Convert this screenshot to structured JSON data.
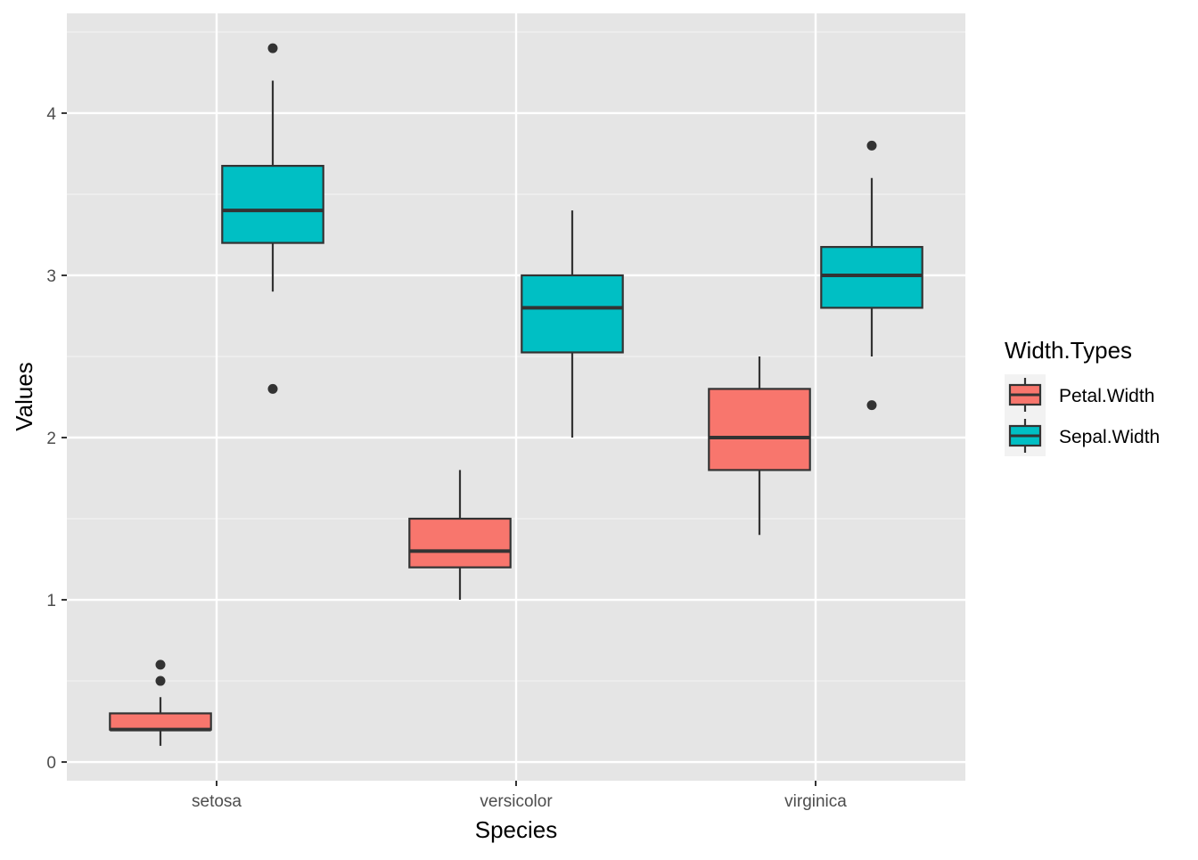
{
  "chart_data": {
    "type": "boxplot",
    "xlabel": "Species",
    "ylabel": "Values",
    "categories": [
      "setosa",
      "versicolor",
      "virginica"
    ],
    "ylim": [
      -0.115,
      4.615
    ],
    "yticks": [
      0,
      1,
      2,
      3,
      4
    ],
    "ytick_labels": [
      "0",
      "1",
      "2",
      "3",
      "4"
    ],
    "grid": true,
    "legend": {
      "title": "Width.Types",
      "placement": "right"
    },
    "series": [
      {
        "name": "Petal.Width",
        "color": "#F8766D",
        "boxes": [
          {
            "category": "setosa",
            "lower": 0.1,
            "q1": 0.2,
            "median": 0.2,
            "q3": 0.3,
            "upper": 0.4,
            "outliers": [
              0.5,
              0.6
            ]
          },
          {
            "category": "versicolor",
            "lower": 1.0,
            "q1": 1.2,
            "median": 1.3,
            "q3": 1.5,
            "upper": 1.8,
            "outliers": []
          },
          {
            "category": "virginica",
            "lower": 1.4,
            "q1": 1.8,
            "median": 2.0,
            "q3": 2.3,
            "upper": 2.5,
            "outliers": []
          }
        ]
      },
      {
        "name": "Sepal.Width",
        "color": "#00BFC4",
        "boxes": [
          {
            "category": "setosa",
            "lower": 2.9,
            "q1": 3.2,
            "median": 3.4,
            "q3": 3.675,
            "upper": 4.2,
            "outliers": [
              2.3,
              4.4
            ]
          },
          {
            "category": "versicolor",
            "lower": 2.0,
            "q1": 2.525,
            "median": 2.8,
            "q3": 3.0,
            "upper": 3.4,
            "outliers": []
          },
          {
            "category": "virginica",
            "lower": 2.5,
            "q1": 2.8,
            "median": 3.0,
            "q3": 3.175,
            "upper": 3.6,
            "outliers": [
              2.2,
              3.8
            ]
          }
        ]
      }
    ]
  }
}
